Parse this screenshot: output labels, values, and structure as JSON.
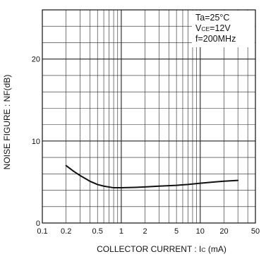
{
  "chart_data": {
    "type": "line",
    "title": "",
    "xlabel": "COLLECTOR CURRENT : Ic (mA)",
    "xlabel_parts": {
      "main": "COLLECTOR CURRENT : I",
      "sub": "C",
      "unit": " (mA)"
    },
    "ylabel": "NOISE FIGURE : NF(dB)",
    "x_scale": "log",
    "xlim": [
      0.1,
      50
    ],
    "ylim": [
      0,
      26
    ],
    "x_ticks": [
      {
        "value": 0.1,
        "label": "0.1"
      },
      {
        "value": 0.2,
        "label": "0.2"
      },
      {
        "value": 0.5,
        "label": "0.5"
      },
      {
        "value": 1,
        "label": "1"
      },
      {
        "value": 2,
        "label": "2"
      },
      {
        "value": 5,
        "label": "5"
      },
      {
        "value": 10,
        "label": "10"
      },
      {
        "value": 20,
        "label": "20"
      },
      {
        "value": 50,
        "label": "50"
      }
    ],
    "y_ticks": [
      {
        "value": 0,
        "label": "0"
      },
      {
        "value": 10,
        "label": "10"
      },
      {
        "value": 20,
        "label": "20"
      }
    ],
    "grid": true,
    "y_minor_step": 2,
    "conditions": [
      {
        "main": "Ta=25°C",
        "sub": "",
        "rest": ""
      },
      {
        "main": "V",
        "sub": "CE",
        "rest": "=12V"
      },
      {
        "main": "f=200MHz",
        "sub": "",
        "rest": ""
      }
    ],
    "series": [
      {
        "x": [
          0.2,
          0.25,
          0.3,
          0.4,
          0.5,
          0.6,
          0.8,
          1,
          1.5,
          2,
          3,
          5,
          7,
          10,
          15,
          20,
          30
        ],
        "y": [
          7.0,
          6.3,
          5.8,
          5.1,
          4.7,
          4.5,
          4.3,
          4.3,
          4.35,
          4.4,
          4.5,
          4.6,
          4.7,
          4.85,
          5.0,
          5.1,
          5.2
        ]
      }
    ],
    "line_color": "#111111"
  }
}
